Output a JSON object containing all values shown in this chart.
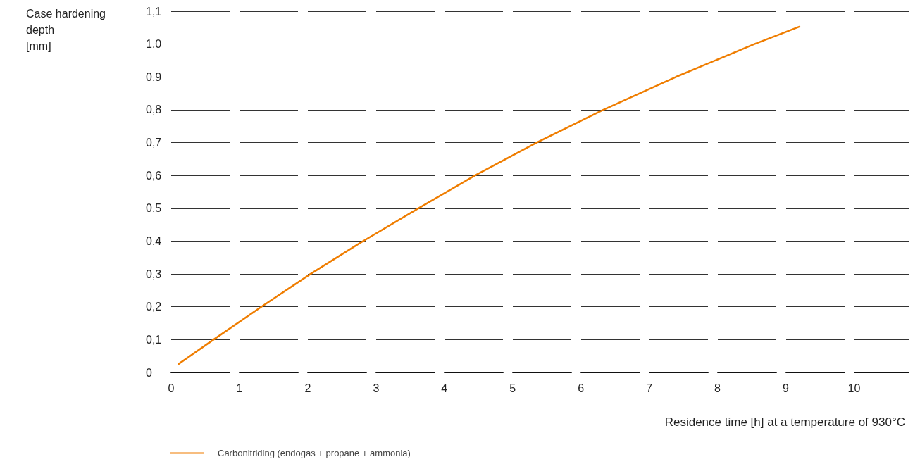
{
  "chart_data": {
    "type": "line",
    "xlabel": "Residence time [h] at a temperature of 930°C",
    "ylabel": "Case hardening depth [mm]",
    "xlim": [
      0,
      10.8
    ],
    "xticks": [
      0,
      1,
      2,
      3,
      4,
      5,
      6,
      7,
      8,
      9,
      10
    ],
    "ylim": [
      0,
      1.1
    ],
    "yticks": [
      {
        "value": 0,
        "label": "0"
      },
      {
        "value": 0.1,
        "label": "0,1"
      },
      {
        "value": 0.2,
        "label": "0,2"
      },
      {
        "value": 0.3,
        "label": "0,3"
      },
      {
        "value": 0.4,
        "label": "0,4"
      },
      {
        "value": 0.5,
        "label": "0,5"
      },
      {
        "value": 0.6,
        "label": "0,6"
      },
      {
        "value": 0.7,
        "label": "0,7"
      },
      {
        "value": 0.8,
        "label": "0,8"
      },
      {
        "value": 0.9,
        "label": "0,9"
      },
      {
        "value": 1.0,
        "label": "1,0"
      },
      {
        "value": 1.1,
        "label": "1,1"
      }
    ],
    "grid": "y",
    "legend": "bottom left",
    "marker": "none",
    "line_style": "solid",
    "series": [
      {
        "name": "Carbonitriding (endogas + propane + ammonia)",
        "color": "#ef7d00",
        "x": [
          0.11,
          0.62,
          1.32,
          2.04,
          2.81,
          3.62,
          4.45,
          5.35,
          6.33,
          7.39,
          8.54,
          9.2
        ],
        "values": [
          0.026,
          0.1,
          0.2,
          0.3,
          0.4,
          0.5,
          0.6,
          0.7,
          0.8,
          0.9,
          1.0,
          1.053
        ]
      }
    ]
  }
}
